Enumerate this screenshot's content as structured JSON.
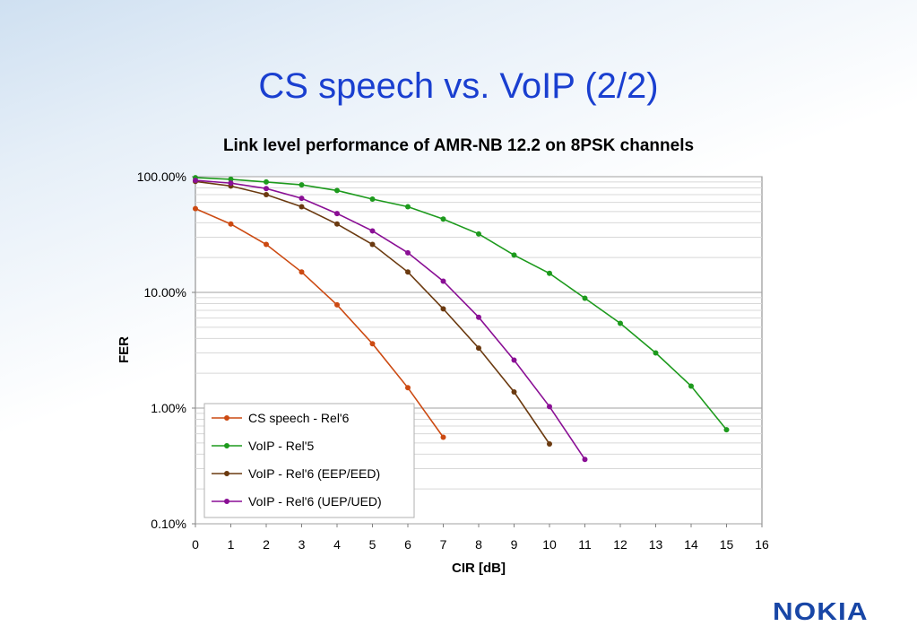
{
  "slide": {
    "title": "CS speech vs. VoIP (2/2)"
  },
  "logo": {
    "text": "NOKIA",
    "color": "#1846a6"
  },
  "chart_data": {
    "type": "line",
    "title": "Link level performance of AMR-NB 12.2 on 8PSK channels",
    "xlabel": "CIR [dB]",
    "ylabel": "FER",
    "xlim": [
      0,
      16
    ],
    "ylim": [
      0.001,
      1
    ],
    "yscale": "log",
    "x_ticks": [
      "0",
      "1",
      "2",
      "3",
      "4",
      "5",
      "6",
      "7",
      "8",
      "9",
      "10",
      "11",
      "12",
      "13",
      "14",
      "15",
      "16"
    ],
    "y_ticks": [
      {
        "value": 1,
        "label": "100.00%"
      },
      {
        "value": 0.1,
        "label": "10.00%"
      },
      {
        "value": 0.01,
        "label": "1.00%"
      },
      {
        "value": 0.001,
        "label": "0.10%"
      }
    ],
    "grid": true,
    "legend_position": "bottom-left",
    "series": [
      {
        "name": "CS speech - Rel'6",
        "color": "#cc4a12",
        "x": [
          0,
          1,
          2,
          3,
          4,
          5,
          6,
          7
        ],
        "y": [
          0.53,
          0.39,
          0.26,
          0.15,
          0.078,
          0.036,
          0.015,
          0.0056
        ]
      },
      {
        "name": "VoIP - Rel'5",
        "color": "#1d9a1d",
        "x": [
          0,
          1,
          2,
          3,
          4,
          5,
          6,
          7,
          8,
          9,
          10,
          11,
          12,
          13,
          14,
          15
        ],
        "y": [
          0.98,
          0.95,
          0.9,
          0.85,
          0.76,
          0.64,
          0.55,
          0.43,
          0.32,
          0.21,
          0.146,
          0.089,
          0.054,
          0.03,
          0.0155,
          0.0065
        ]
      },
      {
        "name": "VoIP - Rel'6 (EEP/EED)",
        "color": "#6b3a10",
        "x": [
          0,
          1,
          2,
          3,
          4,
          5,
          6,
          7,
          8,
          9,
          10
        ],
        "y": [
          0.91,
          0.83,
          0.7,
          0.55,
          0.39,
          0.26,
          0.15,
          0.072,
          0.033,
          0.0138,
          0.0049
        ]
      },
      {
        "name": "VoIP - Rel'6 (UEP/UED)",
        "color": "#8a0f95",
        "x": [
          0,
          1,
          2,
          3,
          4,
          5,
          6,
          7,
          8,
          9,
          10,
          11
        ],
        "y": [
          0.93,
          0.88,
          0.79,
          0.65,
          0.48,
          0.34,
          0.22,
          0.125,
          0.061,
          0.026,
          0.0103,
          0.0036
        ]
      }
    ]
  }
}
